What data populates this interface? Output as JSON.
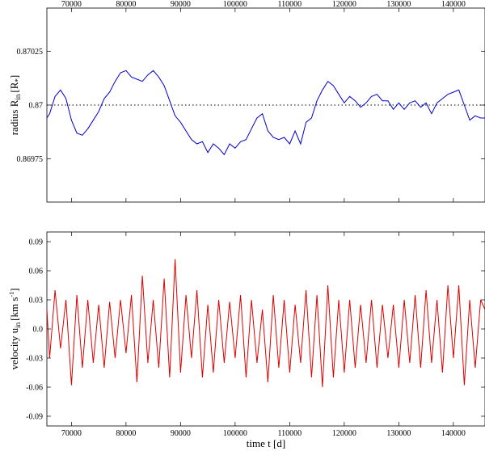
{
  "chart_data": [
    {
      "type": "line",
      "panel": "top",
      "ylabel": "radius R",
      "ylabel_sub": "in",
      "ylabel_unit": "[R",
      "ylabel_unit_sub": "*",
      "ylabel_unit_close": "]",
      "xlabel": "",
      "xlim": [
        65500,
        145800
      ],
      "ylim": [
        0.86955,
        0.87045
      ],
      "x_ticks": [
        70000,
        80000,
        90000,
        100000,
        110000,
        120000,
        130000,
        140000
      ],
      "x_tick_labels_position": "top",
      "y_ticks": [
        0.86975,
        0.87,
        0.87025
      ],
      "y_tick_labels": [
        "0.86975",
        "0.87",
        "0.87025"
      ],
      "reference_line": {
        "y": 0.87,
        "style": "dotted",
        "color": "#000000"
      },
      "series_color": "#0000cc",
      "grid": false,
      "series": [
        {
          "x": [
            65500,
            66000,
            67000,
            68000,
            69000,
            70000,
            71000,
            72000,
            73000,
            74000,
            75000,
            76000,
            77000,
            78000,
            79000,
            80000,
            81000,
            82000,
            83000,
            84000,
            85000,
            86000,
            87000,
            88000,
            89000,
            90000,
            91000,
            92000,
            93000,
            94000,
            95000,
            96000,
            97000,
            98000,
            99000,
            100000,
            101000,
            102000,
            103000,
            104000,
            105000,
            106000,
            107000,
            108000,
            109000,
            110000,
            111000,
            112000,
            113000,
            114000,
            115000,
            116000,
            117000,
            118000,
            119000,
            120000,
            121000,
            122000,
            123000,
            124000,
            125000,
            126000,
            127000,
            128000,
            129000,
            130000,
            131000,
            132000,
            133000,
            134000,
            135000,
            136000,
            137000,
            138000,
            139000,
            140000,
            141000,
            142000,
            143000,
            144000,
            145000,
            145800
          ],
          "y": [
            0.86994,
            0.86996,
            0.87004,
            0.87007,
            0.87003,
            0.86993,
            0.86987,
            0.86986,
            0.86989,
            0.86993,
            0.86997,
            0.87003,
            0.87006,
            0.87011,
            0.87015,
            0.87016,
            0.87013,
            0.87012,
            0.87011,
            0.87014,
            0.87016,
            0.87013,
            0.87009,
            0.87002,
            0.86995,
            0.86992,
            0.86988,
            0.86984,
            0.86982,
            0.86983,
            0.86978,
            0.86982,
            0.8698,
            0.86977,
            0.86982,
            0.8698,
            0.86983,
            0.86984,
            0.86989,
            0.86994,
            0.86996,
            0.86988,
            0.86985,
            0.86984,
            0.86985,
            0.86982,
            0.86988,
            0.86982,
            0.86992,
            0.86994,
            0.87002,
            0.87007,
            0.87011,
            0.87009,
            0.87005,
            0.87001,
            0.87004,
            0.87002,
            0.86999,
            0.87001,
            0.87004,
            0.87005,
            0.87002,
            0.87002,
            0.86998,
            0.87001,
            0.86998,
            0.87001,
            0.87002,
            0.86999,
            0.87001,
            0.86996,
            0.87001,
            0.87003,
            0.87005,
            0.87006,
            0.87007,
            0.87,
            0.86993,
            0.86995,
            0.86994,
            0.86994
          ]
        }
      ]
    },
    {
      "type": "line",
      "panel": "bottom",
      "ylabel": "velocity u",
      "ylabel_sub": "in",
      "ylabel_unit": "[km s",
      "ylabel_unit_sup": "-1",
      "ylabel_unit_close": "]",
      "xlabel": "time t [d]",
      "xlim": [
        65500,
        145800
      ],
      "ylim": [
        -0.1,
        0.1
      ],
      "x_ticks": [
        70000,
        80000,
        90000,
        100000,
        110000,
        120000,
        130000,
        140000
      ],
      "x_tick_labels_position": "bottom",
      "y_ticks": [
        -0.09,
        -0.06,
        -0.03,
        0.0,
        0.03,
        0.06,
        0.09
      ],
      "y_tick_labels": [
        "-0.09",
        "-0.06",
        "-0.03",
        "0.0",
        "0.03",
        "0.06",
        "0.09"
      ],
      "series_color": "#dd0000",
      "grid": false,
      "series": [
        {
          "x": [
            65500,
            66000,
            67000,
            68000,
            69000,
            70000,
            71000,
            72000,
            73000,
            74000,
            75000,
            76000,
            77000,
            78000,
            79000,
            80000,
            81000,
            82000,
            83000,
            84000,
            85000,
            86000,
            87000,
            88000,
            89000,
            90000,
            91000,
            92000,
            93000,
            94000,
            95000,
            96000,
            97000,
            98000,
            99000,
            100000,
            101000,
            102000,
            103000,
            104000,
            105000,
            106000,
            107000,
            108000,
            109000,
            110000,
            111000,
            112000,
            113000,
            114000,
            115000,
            116000,
            117000,
            118000,
            119000,
            120000,
            121000,
            122000,
            123000,
            124000,
            125000,
            126000,
            127000,
            128000,
            129000,
            130000,
            131000,
            132000,
            133000,
            134000,
            135000,
            136000,
            137000,
            138000,
            139000,
            140000,
            141000,
            142000,
            143000,
            144000,
            145000,
            145800
          ],
          "y": [
            0.02,
            -0.03,
            0.04,
            -0.02,
            0.03,
            -0.058,
            0.035,
            -0.04,
            0.03,
            -0.035,
            0.025,
            -0.04,
            0.028,
            -0.03,
            0.03,
            -0.025,
            0.035,
            -0.055,
            0.055,
            -0.035,
            0.03,
            -0.04,
            0.052,
            -0.05,
            0.072,
            -0.045,
            0.035,
            -0.03,
            0.04,
            -0.05,
            0.025,
            -0.045,
            0.03,
            -0.035,
            0.028,
            -0.03,
            0.035,
            -0.05,
            0.03,
            -0.035,
            0.02,
            -0.055,
            0.035,
            -0.04,
            0.03,
            -0.045,
            0.025,
            -0.035,
            0.04,
            -0.05,
            0.035,
            -0.06,
            0.045,
            -0.05,
            0.03,
            -0.045,
            0.03,
            -0.04,
            0.025,
            -0.035,
            0.03,
            -0.04,
            0.025,
            -0.03,
            0.025,
            -0.04,
            0.03,
            -0.035,
            0.035,
            -0.04,
            0.04,
            -0.035,
            0.03,
            -0.045,
            0.045,
            -0.03,
            0.045,
            -0.058,
            0.03,
            -0.04,
            0.03,
            0.02
          ]
        }
      ]
    }
  ]
}
